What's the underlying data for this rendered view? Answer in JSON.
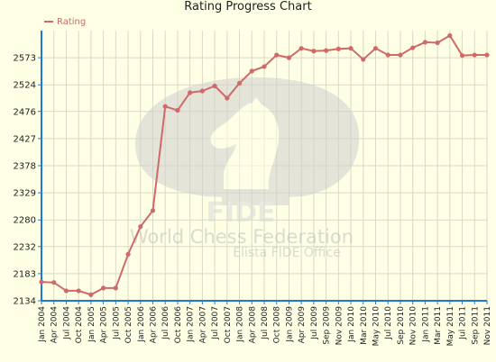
{
  "chart_data": {
    "type": "line",
    "title": "Rating Progress Chart",
    "xlabel": "",
    "ylabel": "",
    "ylim": [
      2134,
      2622
    ],
    "yticks": [
      2134,
      2183,
      2232,
      2280,
      2329,
      2378,
      2427,
      2476,
      2524,
      2573
    ],
    "grid": true,
    "legend_position": "top-left",
    "categories": [
      "Jan 2004",
      "Apr 2004",
      "Jul 2004",
      "Oct 2004",
      "Jan 2005",
      "Apr 2005",
      "Jul 2005",
      "Oct 2005",
      "Jan 2006",
      "Apr 2006",
      "Jul 2006",
      "Oct 2006",
      "Jan 2007",
      "Apr 2007",
      "Jul 2007",
      "Oct 2007",
      "Jan 2008",
      "Apr 2008",
      "Jul 2008",
      "Oct 2008",
      "Jan 2009",
      "Apr 2009",
      "Jul 2009",
      "Sep 2009",
      "Nov 2009",
      "Jan 2010",
      "Mar 2010",
      "May 2010",
      "Jul 2010",
      "Sep 2010",
      "Nov 2010",
      "Jan 2011",
      "Mar 2011",
      "May 2011",
      "Jul 2011",
      "Sep 2011",
      "Nov 2011"
    ],
    "series": [
      {
        "name": "Rating",
        "color": "#d06a6a",
        "values": [
          2168,
          2167,
          2152,
          2152,
          2145,
          2157,
          2157,
          2218,
          2268,
          2297,
          2485,
          2478,
          2510,
          2513,
          2522,
          2500,
          2527,
          2549,
          2557,
          2578,
          2573,
          2590,
          2585,
          2586,
          2589,
          2590,
          2570,
          2590,
          2578,
          2578,
          2591,
          2601,
          2600,
          2613,
          2577,
          2578,
          2578
        ]
      }
    ]
  },
  "watermark": {
    "name": "FIDE",
    "line1": "World Chess Federation",
    "line2": "Elista FIDE Office"
  }
}
